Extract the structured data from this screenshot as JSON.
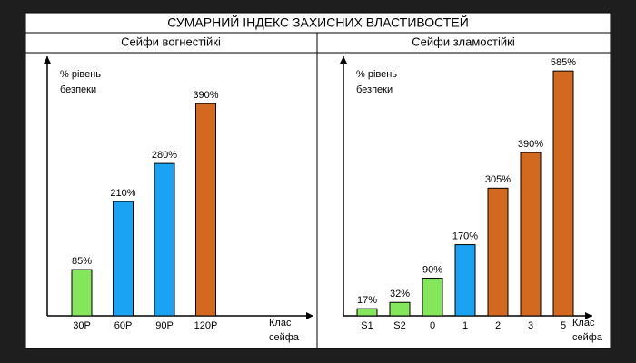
{
  "title": "СУМАРНИЙ ІНДЕКС ЗАХИСНИХ ВЛАСТИВОСТЕЙ",
  "chart_data": [
    {
      "type": "bar",
      "title": "Сейфи вогнестійкі",
      "categories": [
        "30P",
        "60P",
        "90P",
        "120P"
      ],
      "values": [
        85,
        210,
        280,
        390
      ],
      "value_labels": [
        "85%",
        "210%",
        "280%",
        "390%"
      ],
      "colors": [
        "#84e65a",
        "#1ba3f3",
        "#1ba3f3",
        "#d2691e"
      ],
      "ylim": [
        0,
        477
      ],
      "ylabel": [
        "% рівень",
        "безпеки"
      ],
      "xlabel": [
        "Клас",
        "сейфа"
      ]
    },
    {
      "type": "bar",
      "title": "Сейфи  зламостійкі",
      "categories": [
        "S1",
        "S2",
        "0",
        "1",
        "2",
        "3",
        "5"
      ],
      "values": [
        17,
        32,
        90,
        170,
        305,
        390,
        585
      ],
      "value_labels": [
        "17%",
        "32%",
        "90%",
        "170%",
        "305%",
        "390%",
        "585%"
      ],
      "colors": [
        "#84e65a",
        "#84e65a",
        "#84e65a",
        "#1ba3f3",
        "#d2691e",
        "#d2691e",
        "#d2691e"
      ],
      "ylim": [
        0,
        620
      ],
      "ylabel": [
        "% рівень",
        "безпеки"
      ],
      "xlabel": [
        "Клас",
        "сейфа"
      ]
    }
  ]
}
